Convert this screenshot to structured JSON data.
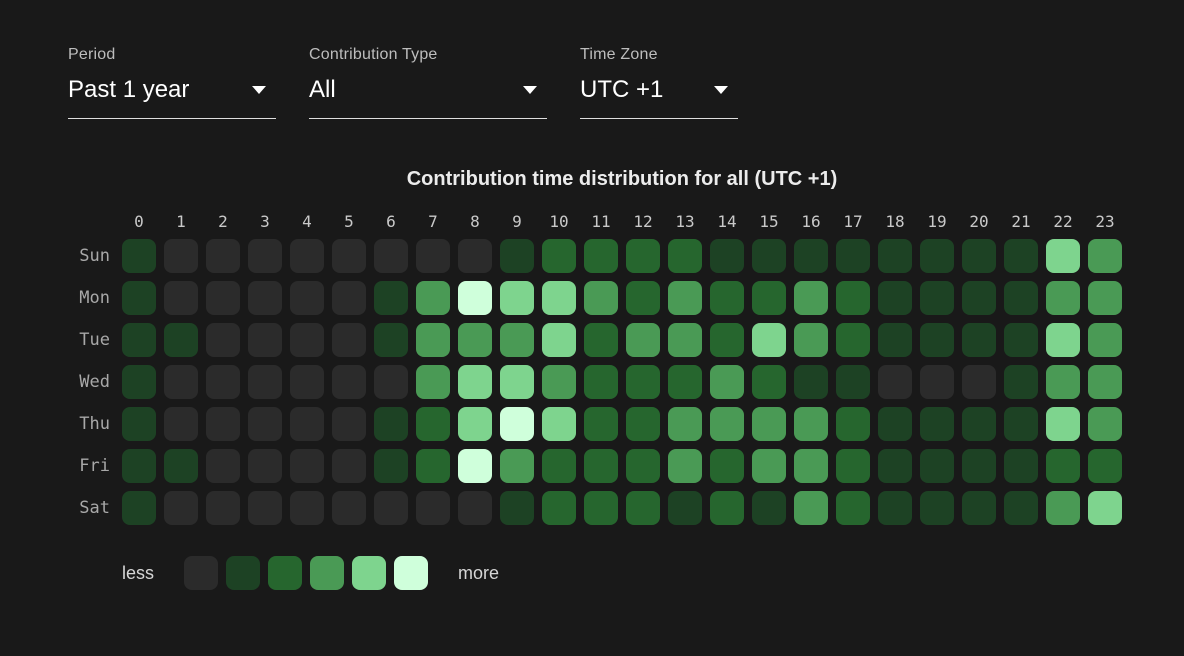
{
  "page": {
    "background": "#191919"
  },
  "filters": [
    {
      "label": "Period",
      "value": "Past 1 year"
    },
    {
      "label": "Contribution Type",
      "value": "All"
    },
    {
      "label": "Time Zone",
      "value": "UTC +1"
    }
  ],
  "chart_data": {
    "type": "heatmap",
    "title": "Contribution time distribution for all (UTC +1)",
    "x_labels": [
      "0",
      "1",
      "2",
      "3",
      "4",
      "5",
      "6",
      "7",
      "8",
      "9",
      "10",
      "11",
      "12",
      "13",
      "14",
      "15",
      "16",
      "17",
      "18",
      "19",
      "20",
      "21",
      "22",
      "23"
    ],
    "y_labels": [
      "Sun",
      "Mon",
      "Tue",
      "Wed",
      "Thu",
      "Fri",
      "Sat"
    ],
    "levels": [
      [
        1,
        0,
        0,
        0,
        0,
        0,
        0,
        0,
        0,
        1,
        2,
        2,
        2,
        2,
        1,
        1,
        1,
        1,
        1,
        1,
        1,
        1,
        4,
        3
      ],
      [
        1,
        0,
        0,
        0,
        0,
        0,
        1,
        3,
        5,
        4,
        4,
        3,
        2,
        3,
        2,
        2,
        3,
        2,
        1,
        1,
        1,
        1,
        3,
        3
      ],
      [
        1,
        1,
        0,
        0,
        0,
        0,
        1,
        3,
        3,
        3,
        4,
        2,
        3,
        3,
        2,
        4,
        3,
        2,
        1,
        1,
        1,
        1,
        4,
        3
      ],
      [
        1,
        0,
        0,
        0,
        0,
        0,
        0,
        3,
        4,
        4,
        3,
        2,
        2,
        2,
        3,
        2,
        1,
        1,
        0,
        0,
        0,
        1,
        3,
        3
      ],
      [
        1,
        0,
        0,
        0,
        0,
        0,
        1,
        2,
        4,
        5,
        4,
        2,
        2,
        3,
        3,
        3,
        3,
        2,
        1,
        1,
        1,
        1,
        4,
        3
      ],
      [
        1,
        1,
        0,
        0,
        0,
        0,
        1,
        2,
        5,
        3,
        2,
        2,
        2,
        3,
        2,
        3,
        3,
        2,
        1,
        1,
        1,
        1,
        2,
        2
      ],
      [
        1,
        0,
        0,
        0,
        0,
        0,
        0,
        0,
        0,
        1,
        2,
        2,
        2,
        1,
        2,
        1,
        3,
        2,
        1,
        1,
        1,
        1,
        3,
        4
      ]
    ],
    "palette": [
      "#2b2b2b",
      "#1d4224",
      "#26662e",
      "#4a9a55",
      "#7ed48e",
      "#cfffdb"
    ],
    "legend": {
      "less_label": "less",
      "more_label": "more"
    }
  }
}
